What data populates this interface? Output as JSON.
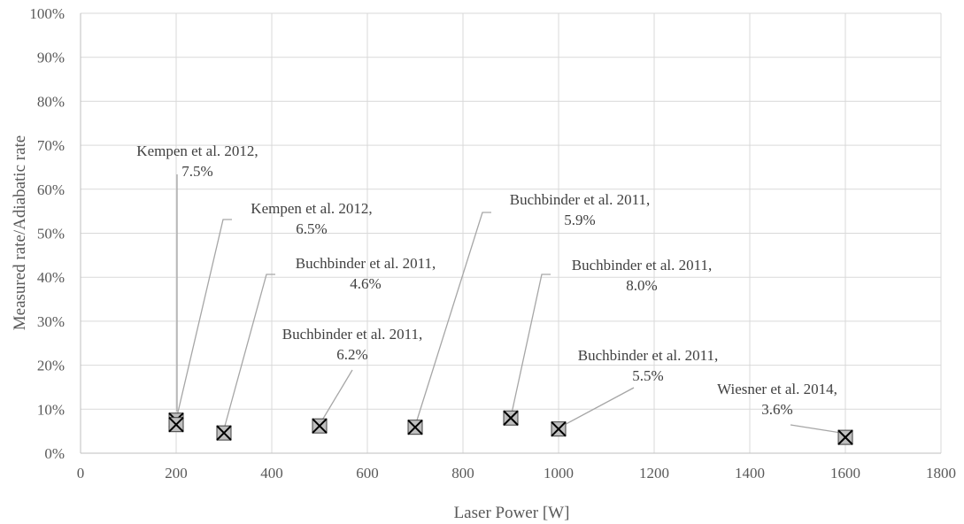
{
  "chart_data": {
    "type": "scatter",
    "title": "",
    "xlabel": "Laser Power [W]",
    "ylabel": "Measured rate/Adiabatic rate",
    "xlim": [
      0,
      1800
    ],
    "ylim": [
      0,
      100
    ],
    "x_ticks": [
      "0",
      "200",
      "400",
      "600",
      "800",
      "1000",
      "1200",
      "1400",
      "1600",
      "1800"
    ],
    "y_ticks": [
      "0%",
      "10%",
      "20%",
      "30%",
      "40%",
      "50%",
      "60%",
      "70%",
      "80%",
      "90%",
      "100%"
    ],
    "grid": true,
    "marker_color": "#bfbfbf",
    "points": [
      {
        "x": 200,
        "y": 7.5,
        "source": "Kempen et al. 2012,",
        "value_label": "7.5%"
      },
      {
        "x": 200,
        "y": 6.5,
        "source": "Kempen et al. 2012,",
        "value_label": "6.5%"
      },
      {
        "x": 300,
        "y": 4.6,
        "source": "Buchbinder et al. 2011,",
        "value_label": "4.6%"
      },
      {
        "x": 500,
        "y": 6.2,
        "source": "Buchbinder et al. 2011,",
        "value_label": "6.2%"
      },
      {
        "x": 700,
        "y": 5.9,
        "source": "Buchbinder et al. 2011,",
        "value_label": "5.9%"
      },
      {
        "x": 900,
        "y": 8.0,
        "source": "Buchbinder et al. 2011,",
        "value_label": "8.0%"
      },
      {
        "x": 1000,
        "y": 5.5,
        "source": "Buchbinder et al. 2011,",
        "value_label": "5.5%"
      },
      {
        "x": 1600,
        "y": 3.6,
        "source": "Wiesner et al. 2014,",
        "value_label": "3.6%"
      }
    ]
  }
}
